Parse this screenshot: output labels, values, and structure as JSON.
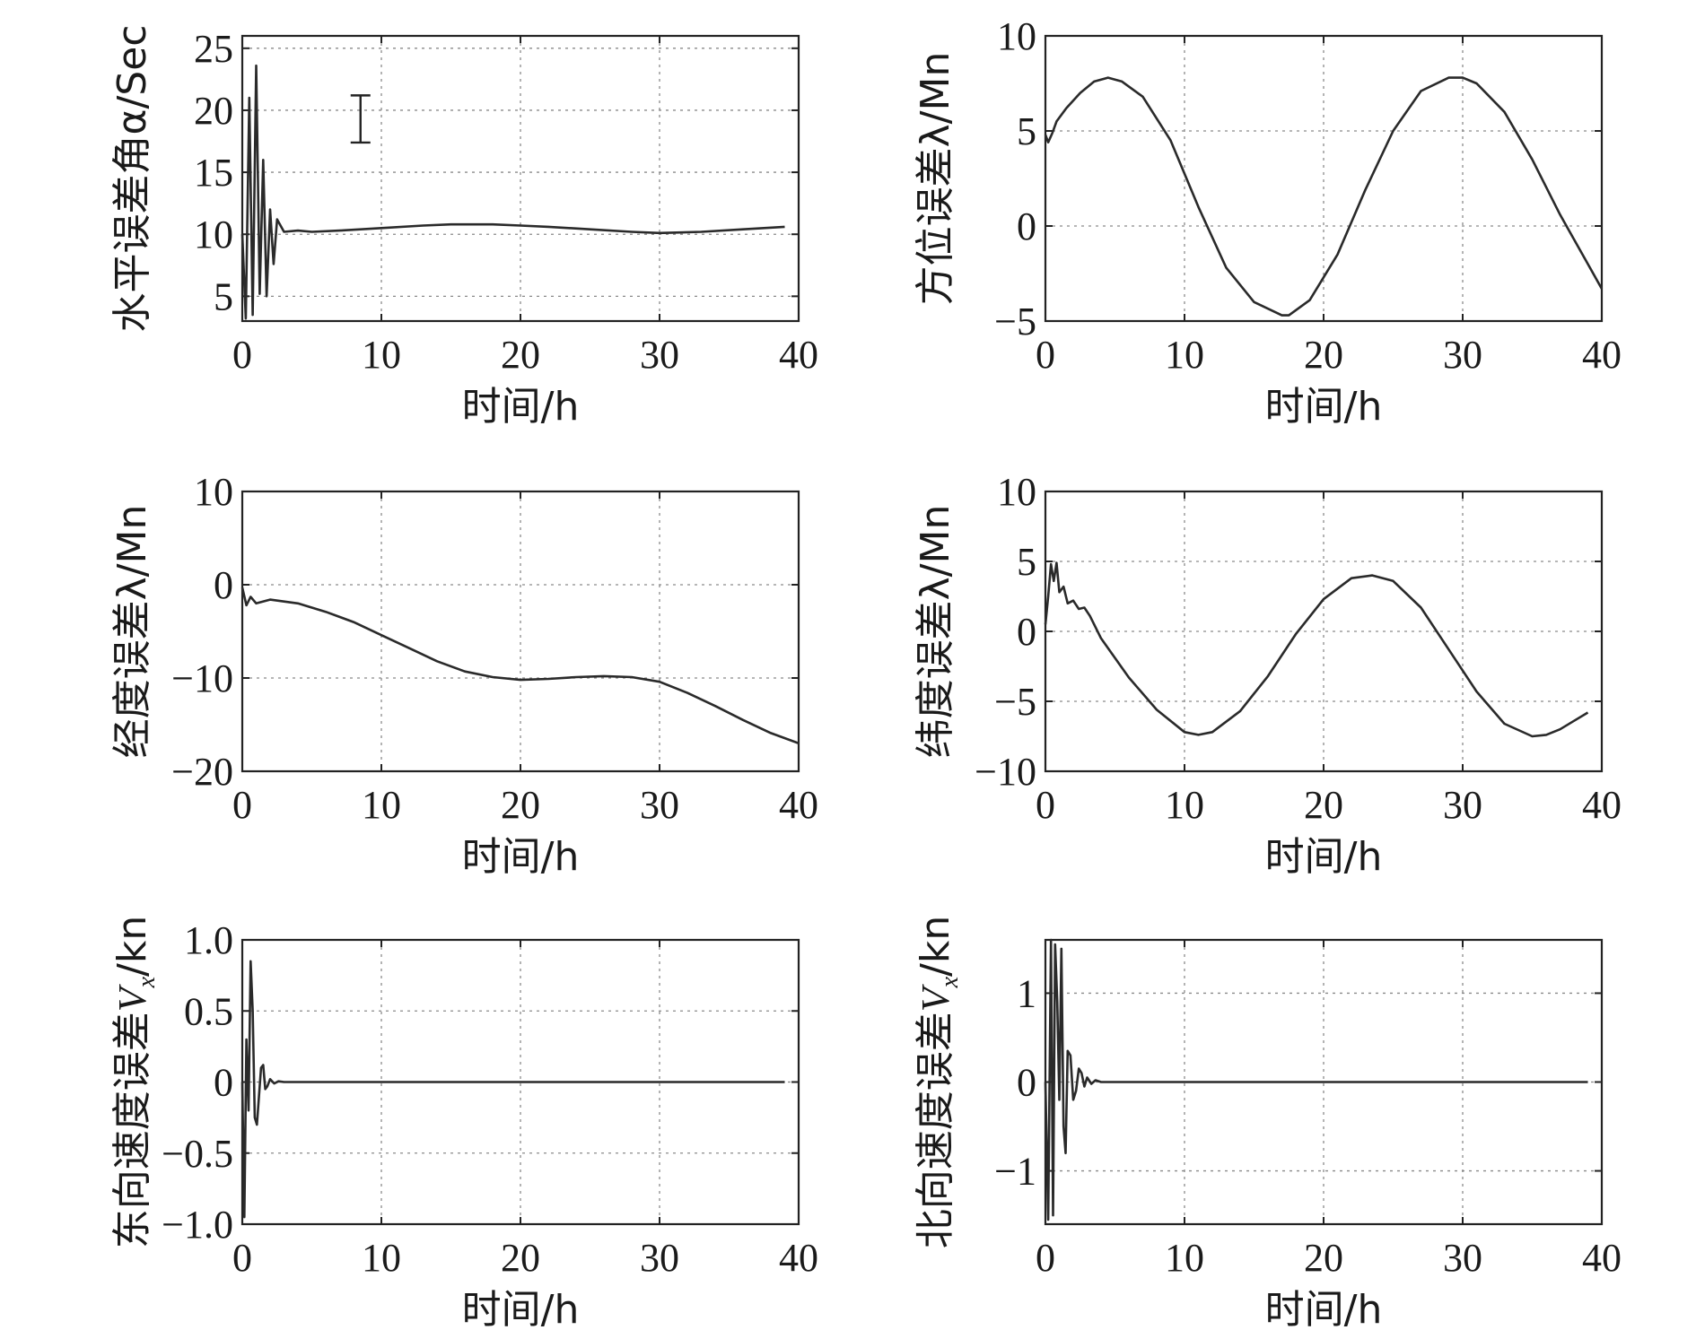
{
  "figure": {
    "background": "#ffffff",
    "line_color": "#2a2a2a",
    "grid_color": "#8a8a8a"
  },
  "chart_data": [
    {
      "id": "horizontal-error",
      "type": "line",
      "title": "",
      "xlabel": "时间/h",
      "ylabel": "水平误差角α/Sec",
      "xlim": [
        0,
        40
      ],
      "ylim": [
        3,
        26
      ],
      "xticks": [
        "0",
        "10",
        "20",
        "30",
        "40"
      ],
      "yticks": [
        5,
        10,
        15,
        20,
        25
      ],
      "ytick_labels": [
        "5",
        "10",
        "15",
        "20",
        "25"
      ],
      "grid": true,
      "marker": {
        "x": 8.5,
        "y_low": 17.4,
        "y_high": 21.2
      },
      "series": [
        {
          "x": [
            0,
            0.25,
            0.5,
            0.75,
            1.0,
            1.25,
            1.5,
            1.75,
            2.0,
            2.25,
            2.5,
            3,
            4,
            5,
            7,
            10,
            13,
            15,
            18,
            20,
            22,
            25,
            28,
            30,
            33,
            36,
            39
          ],
          "y": [
            10,
            3.2,
            21,
            3.5,
            23.6,
            5.2,
            16,
            5,
            12,
            7.6,
            11.2,
            10.2,
            10.3,
            10.2,
            10.3,
            10.5,
            10.7,
            10.8,
            10.8,
            10.7,
            10.6,
            10.4,
            10.2,
            10.1,
            10.2,
            10.4,
            10.6
          ]
        }
      ]
    },
    {
      "id": "azimuth-error",
      "type": "line",
      "title": "",
      "xlabel": "时间/h",
      "ylabel": "方位误差λ/Mn",
      "xlim": [
        0,
        40
      ],
      "ylim": [
        -5,
        10
      ],
      "xticks": [
        "0",
        "10",
        "20",
        "30",
        "40"
      ],
      "yticks": [
        -5,
        0,
        5,
        10
      ],
      "ytick_labels": [
        "−5",
        "0",
        "5",
        "10"
      ],
      "grid": true,
      "series": [
        {
          "x": [
            0,
            0.2,
            0.5,
            0.8,
            1.5,
            2.5,
            3.5,
            4.5,
            5.5,
            7,
            9,
            11,
            13,
            15,
            17,
            17.5,
            19,
            21,
            23,
            25,
            27,
            29,
            30,
            31,
            33,
            35,
            37,
            39,
            40
          ],
          "y": [
            4.8,
            4.4,
            4.9,
            5.5,
            6.2,
            7.0,
            7.6,
            7.8,
            7.6,
            6.8,
            4.5,
            1.0,
            -2.2,
            -4.0,
            -4.7,
            -4.7,
            -3.9,
            -1.5,
            1.9,
            5.0,
            7.1,
            7.8,
            7.8,
            7.5,
            6.0,
            3.5,
            0.6,
            -2.0,
            -3.3
          ]
        }
      ]
    },
    {
      "id": "longitude-error",
      "type": "line",
      "title": "",
      "xlabel": "时间/h",
      "ylabel": "经度误差λ/Mn",
      "xlim": [
        0,
        40
      ],
      "ylim": [
        -20,
        10
      ],
      "xticks": [
        "0",
        "10",
        "20",
        "30",
        "40"
      ],
      "yticks": [
        -20,
        -10,
        0,
        10
      ],
      "ytick_labels": [
        "−20",
        "−10",
        "0",
        "10"
      ],
      "grid": true,
      "series": [
        {
          "x": [
            0,
            0.3,
            0.6,
            1,
            2,
            4,
            6,
            8,
            10,
            12,
            14,
            16,
            18,
            20,
            22,
            24,
            26,
            28,
            30,
            32,
            34,
            36,
            38,
            40
          ],
          "y": [
            -0.3,
            -2.2,
            -1.3,
            -2.0,
            -1.6,
            -2.0,
            -2.9,
            -4.0,
            -5.4,
            -6.8,
            -8.2,
            -9.3,
            -9.9,
            -10.2,
            -10.1,
            -9.9,
            -9.8,
            -9.9,
            -10.4,
            -11.6,
            -13.0,
            -14.5,
            -15.9,
            -17.0
          ]
        }
      ]
    },
    {
      "id": "latitude-error",
      "type": "line",
      "title": "",
      "xlabel": "时间/h",
      "ylabel": "纬度误差λ/Mn",
      "xlim": [
        0,
        40
      ],
      "ylim": [
        -10,
        10
      ],
      "xticks": [
        "0",
        "10",
        "20",
        "30",
        "40"
      ],
      "yticks": [
        -10,
        -5,
        0,
        5,
        10
      ],
      "ytick_labels": [
        "−10",
        "−5",
        "0",
        "5",
        "10"
      ],
      "grid": true,
      "series": [
        {
          "x": [
            0,
            0.2,
            0.4,
            0.6,
            0.8,
            1.0,
            1.3,
            1.6,
            2.0,
            2.4,
            2.8,
            3.2,
            4,
            6,
            8,
            10,
            11,
            12,
            14,
            16,
            18,
            20,
            22,
            23.5,
            25,
            27,
            29,
            31,
            33,
            35,
            36,
            37,
            38,
            39
          ],
          "y": [
            0.5,
            2.5,
            4.8,
            3.6,
            4.9,
            2.8,
            3.2,
            2.0,
            2.2,
            1.6,
            1.7,
            1.1,
            -0.5,
            -3.3,
            -5.6,
            -7.2,
            -7.4,
            -7.2,
            -5.7,
            -3.2,
            -0.2,
            2.3,
            3.8,
            4.0,
            3.6,
            1.7,
            -1.3,
            -4.3,
            -6.6,
            -7.5,
            -7.4,
            -7.0,
            -6.4,
            -5.8
          ]
        }
      ]
    },
    {
      "id": "east-velocity-error",
      "type": "line",
      "title": "",
      "xlabel": "时间/h",
      "ylabel": "东向速度误差Vx/kn",
      "ylabel_parts": {
        "main": "东向速度误差",
        "var": "V",
        "sub": "x",
        "unit": "/kn"
      },
      "xlim": [
        0,
        40
      ],
      "ylim": [
        -1.0,
        1.0
      ],
      "xticks": [
        "0",
        "10",
        "20",
        "30",
        "40"
      ],
      "yticks": [
        -1.0,
        -0.5,
        0,
        0.5,
        1.0
      ],
      "ytick_labels": [
        "−1.0",
        "−0.5",
        "0",
        "0.5",
        "1.0"
      ],
      "grid": true,
      "series": [
        {
          "x": [
            0,
            0.15,
            0.3,
            0.45,
            0.6,
            0.75,
            0.9,
            1.05,
            1.2,
            1.35,
            1.5,
            1.65,
            1.8,
            2.0,
            2.3,
            2.6,
            3,
            5,
            10,
            20,
            30,
            39
          ],
          "y": [
            0,
            -0.95,
            0.3,
            -0.2,
            0.85,
            0.5,
            -0.25,
            -0.3,
            -0.1,
            0.1,
            0.12,
            -0.05,
            -0.03,
            0.02,
            -0.01,
            0.005,
            0,
            0,
            0,
            0,
            0,
            0
          ]
        }
      ]
    },
    {
      "id": "north-velocity-error",
      "type": "line",
      "title": "",
      "xlabel": "时间/h",
      "ylabel": "北向速度误差Vx/kn",
      "ylabel_parts": {
        "main": "北向速度误差",
        "var": "V",
        "sub": "x",
        "unit": "/kn"
      },
      "xlim": [
        0,
        40
      ],
      "ylim": [
        -1.6,
        1.6
      ],
      "xticks": [
        "0",
        "10",
        "20",
        "30",
        "40"
      ],
      "yticks": [
        -1,
        0,
        1
      ],
      "ytick_labels": [
        "−1",
        "0",
        "1"
      ],
      "grid": true,
      "series": [
        {
          "x": [
            0,
            0.2,
            0.4,
            0.55,
            0.7,
            0.85,
            1.0,
            1.15,
            1.3,
            1.45,
            1.6,
            1.8,
            2.0,
            2.2,
            2.4,
            2.6,
            2.8,
            3.0,
            3.3,
            3.6,
            4,
            5,
            10,
            20,
            30,
            39
          ],
          "y": [
            0,
            -1.55,
            1.6,
            -1.5,
            1.55,
            0.9,
            -0.2,
            1.5,
            -0.5,
            -0.8,
            0.35,
            0.3,
            -0.2,
            -0.1,
            0.15,
            0.1,
            -0.05,
            0.05,
            -0.02,
            0.02,
            0,
            0,
            0,
            0,
            0,
            0
          ]
        }
      ]
    }
  ]
}
